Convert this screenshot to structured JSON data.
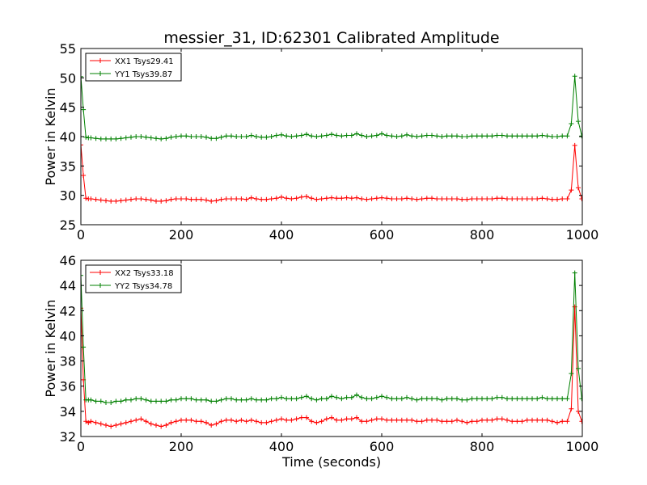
{
  "title": "messier_31, ID:62301 Calibrated Amplitude",
  "colors": {
    "xx": "#ff0000",
    "yy": "#008000"
  },
  "chart_data": [
    {
      "type": "line",
      "ylabel": "Power in Kelvin",
      "xlabel": "",
      "xlim": [
        0,
        1000
      ],
      "ylim": [
        25,
        55
      ],
      "xticks": [
        "0",
        "200",
        "400",
        "600",
        "800",
        "1000"
      ],
      "yticks": [
        "25",
        "30",
        "35",
        "40",
        "45",
        "50",
        "55"
      ],
      "grid": false,
      "legend_position": "upper-left",
      "series": [
        {
          "name": "XX1 Tsys29.41",
          "color": "#ff0000",
          "marker": "+",
          "x": [
            0,
            5,
            10,
            15,
            20,
            30,
            40,
            50,
            60,
            70,
            80,
            90,
            100,
            110,
            120,
            130,
            140,
            150,
            160,
            170,
            180,
            190,
            200,
            210,
            220,
            230,
            240,
            250,
            260,
            270,
            280,
            290,
            300,
            310,
            320,
            330,
            340,
            350,
            360,
            370,
            380,
            390,
            400,
            410,
            420,
            430,
            440,
            450,
            460,
            470,
            480,
            490,
            500,
            510,
            520,
            530,
            540,
            550,
            560,
            570,
            580,
            590,
            600,
            610,
            620,
            630,
            640,
            650,
            660,
            670,
            680,
            690,
            700,
            710,
            720,
            730,
            740,
            750,
            760,
            770,
            780,
            790,
            800,
            810,
            820,
            830,
            840,
            850,
            860,
            870,
            880,
            890,
            900,
            910,
            920,
            930,
            940,
            950,
            960,
            970,
            978,
            985,
            992,
            999
          ],
          "y": [
            38.6,
            33.4,
            29.5,
            29.4,
            29.4,
            29.3,
            29.2,
            29.1,
            29.0,
            29.0,
            29.1,
            29.2,
            29.3,
            29.4,
            29.4,
            29.3,
            29.2,
            29.0,
            29.0,
            29.1,
            29.3,
            29.4,
            29.4,
            29.4,
            29.3,
            29.3,
            29.3,
            29.2,
            29.0,
            29.1,
            29.3,
            29.4,
            29.4,
            29.4,
            29.4,
            29.3,
            29.6,
            29.4,
            29.3,
            29.3,
            29.4,
            29.5,
            29.7,
            29.5,
            29.4,
            29.5,
            29.7,
            29.8,
            29.5,
            29.3,
            29.4,
            29.5,
            29.6,
            29.5,
            29.5,
            29.6,
            29.5,
            29.6,
            29.4,
            29.3,
            29.4,
            29.5,
            29.6,
            29.5,
            29.4,
            29.4,
            29.4,
            29.5,
            29.4,
            29.3,
            29.4,
            29.5,
            29.5,
            29.4,
            29.4,
            29.4,
            29.4,
            29.4,
            29.3,
            29.3,
            29.4,
            29.4,
            29.4,
            29.4,
            29.4,
            29.5,
            29.5,
            29.4,
            29.4,
            29.4,
            29.4,
            29.4,
            29.4,
            29.4,
            29.5,
            29.4,
            29.3,
            29.3,
            29.4,
            29.4,
            30.9,
            38.5,
            31.3,
            29.4
          ]
        },
        {
          "name": "YY1 Tsys39.87",
          "color": "#008000",
          "marker": "+",
          "x": [
            0,
            5,
            10,
            15,
            20,
            30,
            40,
            50,
            60,
            70,
            80,
            90,
            100,
            110,
            120,
            130,
            140,
            150,
            160,
            170,
            180,
            190,
            200,
            210,
            220,
            230,
            240,
            250,
            260,
            270,
            280,
            290,
            300,
            310,
            320,
            330,
            340,
            350,
            360,
            370,
            380,
            390,
            400,
            410,
            420,
            430,
            440,
            450,
            460,
            470,
            480,
            490,
            500,
            510,
            520,
            530,
            540,
            550,
            560,
            570,
            580,
            590,
            600,
            610,
            620,
            630,
            640,
            650,
            660,
            670,
            680,
            690,
            700,
            710,
            720,
            730,
            740,
            750,
            760,
            770,
            780,
            790,
            800,
            810,
            820,
            830,
            840,
            850,
            860,
            870,
            880,
            890,
            900,
            910,
            920,
            930,
            940,
            950,
            960,
            970,
            978,
            985,
            992,
            999
          ],
          "y": [
            50.2,
            44.6,
            39.9,
            39.8,
            39.8,
            39.7,
            39.6,
            39.6,
            39.6,
            39.6,
            39.7,
            39.8,
            39.9,
            40.0,
            40.0,
            39.9,
            39.8,
            39.7,
            39.6,
            39.7,
            39.9,
            40.0,
            40.1,
            40.1,
            40.0,
            40.0,
            40.0,
            39.9,
            39.7,
            39.7,
            39.9,
            40.1,
            40.1,
            40.0,
            40.0,
            40.0,
            40.2,
            40.0,
            39.9,
            39.9,
            40.0,
            40.2,
            40.3,
            40.1,
            40.0,
            40.1,
            40.2,
            40.4,
            40.1,
            40.0,
            40.1,
            40.2,
            40.4,
            40.2,
            40.1,
            40.2,
            40.2,
            40.5,
            40.2,
            40.0,
            40.1,
            40.2,
            40.5,
            40.2,
            40.1,
            40.0,
            40.1,
            40.3,
            40.1,
            40.0,
            40.1,
            40.2,
            40.2,
            40.1,
            40.0,
            40.1,
            40.1,
            40.1,
            40.0,
            40.0,
            40.1,
            40.1,
            40.1,
            40.1,
            40.1,
            40.2,
            40.2,
            40.1,
            40.1,
            40.1,
            40.1,
            40.1,
            40.1,
            40.1,
            40.2,
            40.1,
            40.0,
            40.0,
            40.1,
            40.1,
            42.2,
            50.3,
            42.6,
            40.1
          ]
        }
      ]
    },
    {
      "type": "line",
      "ylabel": "Power in Kelvin",
      "xlabel": "Time (seconds)",
      "xlim": [
        0,
        1000
      ],
      "ylim": [
        32,
        46
      ],
      "xticks": [
        "0",
        "200",
        "400",
        "600",
        "800",
        "1000"
      ],
      "yticks": [
        "32",
        "34",
        "36",
        "38",
        "40",
        "42",
        "44",
        "46"
      ],
      "grid": false,
      "legend_position": "upper-left",
      "series": [
        {
          "name": "XX2 Tsys33.18",
          "color": "#ff0000",
          "marker": "+",
          "x": [
            0,
            5,
            10,
            15,
            20,
            30,
            40,
            50,
            60,
            70,
            80,
            90,
            100,
            110,
            120,
            130,
            140,
            150,
            160,
            170,
            180,
            190,
            200,
            210,
            220,
            230,
            240,
            250,
            260,
            270,
            280,
            290,
            300,
            310,
            320,
            330,
            340,
            350,
            360,
            370,
            380,
            390,
            400,
            410,
            420,
            430,
            440,
            450,
            460,
            470,
            480,
            490,
            500,
            510,
            520,
            530,
            540,
            550,
            560,
            570,
            580,
            590,
            600,
            610,
            620,
            630,
            640,
            650,
            660,
            670,
            680,
            690,
            700,
            710,
            720,
            730,
            740,
            750,
            760,
            770,
            780,
            790,
            800,
            810,
            820,
            830,
            840,
            850,
            860,
            870,
            880,
            890,
            900,
            910,
            920,
            930,
            940,
            950,
            960,
            970,
            978,
            985,
            992,
            999
          ],
          "y": [
            42.2,
            36.5,
            33.2,
            33.1,
            33.2,
            33.1,
            33.0,
            32.9,
            32.8,
            32.9,
            33.0,
            33.1,
            33.2,
            33.3,
            33.4,
            33.2,
            33.0,
            32.9,
            32.8,
            32.9,
            33.1,
            33.2,
            33.3,
            33.3,
            33.3,
            33.2,
            33.2,
            33.1,
            32.9,
            33.0,
            33.2,
            33.3,
            33.3,
            33.2,
            33.3,
            33.2,
            33.3,
            33.2,
            33.1,
            33.1,
            33.2,
            33.3,
            33.4,
            33.3,
            33.3,
            33.4,
            33.5,
            33.5,
            33.2,
            33.1,
            33.2,
            33.4,
            33.5,
            33.3,
            33.3,
            33.4,
            33.4,
            33.5,
            33.2,
            33.2,
            33.3,
            33.4,
            33.4,
            33.3,
            33.3,
            33.3,
            33.3,
            33.3,
            33.3,
            33.2,
            33.2,
            33.3,
            33.3,
            33.3,
            33.2,
            33.2,
            33.2,
            33.3,
            33.2,
            33.1,
            33.2,
            33.2,
            33.3,
            33.3,
            33.3,
            33.4,
            33.4,
            33.3,
            33.2,
            33.2,
            33.2,
            33.3,
            33.3,
            33.3,
            33.3,
            33.3,
            33.2,
            33.1,
            33.2,
            33.2,
            34.2,
            42.3,
            34.0,
            33.2
          ]
        },
        {
          "name": "YY2 Tsys34.78",
          "color": "#008000",
          "marker": "+",
          "x": [
            0,
            5,
            10,
            15,
            20,
            30,
            40,
            50,
            60,
            70,
            80,
            90,
            100,
            110,
            120,
            130,
            140,
            150,
            160,
            170,
            180,
            190,
            200,
            210,
            220,
            230,
            240,
            250,
            260,
            270,
            280,
            290,
            300,
            310,
            320,
            330,
            340,
            350,
            360,
            370,
            380,
            390,
            400,
            410,
            420,
            430,
            440,
            450,
            460,
            470,
            480,
            490,
            500,
            510,
            520,
            530,
            540,
            550,
            560,
            570,
            580,
            590,
            600,
            610,
            620,
            630,
            640,
            650,
            660,
            670,
            680,
            690,
            700,
            710,
            720,
            730,
            740,
            750,
            760,
            770,
            780,
            790,
            800,
            810,
            820,
            830,
            840,
            850,
            860,
            870,
            880,
            890,
            900,
            910,
            920,
            930,
            940,
            950,
            960,
            970,
            978,
            985,
            992,
            999
          ],
          "y": [
            44.8,
            39.1,
            34.9,
            34.9,
            34.9,
            34.8,
            34.8,
            34.7,
            34.7,
            34.8,
            34.8,
            34.9,
            34.9,
            35.0,
            35.0,
            34.9,
            34.8,
            34.8,
            34.8,
            34.8,
            34.9,
            34.9,
            35.0,
            35.0,
            35.0,
            34.9,
            34.9,
            34.9,
            34.8,
            34.8,
            34.9,
            35.0,
            35.0,
            34.9,
            34.9,
            34.9,
            35.0,
            34.9,
            34.9,
            34.9,
            35.0,
            35.0,
            35.1,
            35.0,
            35.0,
            35.0,
            35.1,
            35.2,
            35.0,
            34.9,
            35.0,
            35.0,
            35.2,
            35.1,
            35.0,
            35.1,
            35.1,
            35.3,
            35.1,
            35.0,
            35.0,
            35.1,
            35.2,
            35.1,
            35.0,
            35.0,
            35.0,
            35.1,
            35.0,
            34.9,
            35.0,
            35.0,
            35.0,
            35.0,
            34.9,
            35.0,
            35.0,
            35.0,
            34.9,
            34.9,
            35.0,
            35.0,
            35.0,
            35.0,
            35.0,
            35.1,
            35.1,
            35.0,
            35.0,
            35.0,
            35.0,
            35.0,
            35.0,
            35.0,
            35.1,
            35.0,
            35.0,
            35.0,
            35.0,
            35.0,
            37.0,
            45.0,
            37.4,
            35.0
          ]
        }
      ]
    }
  ]
}
